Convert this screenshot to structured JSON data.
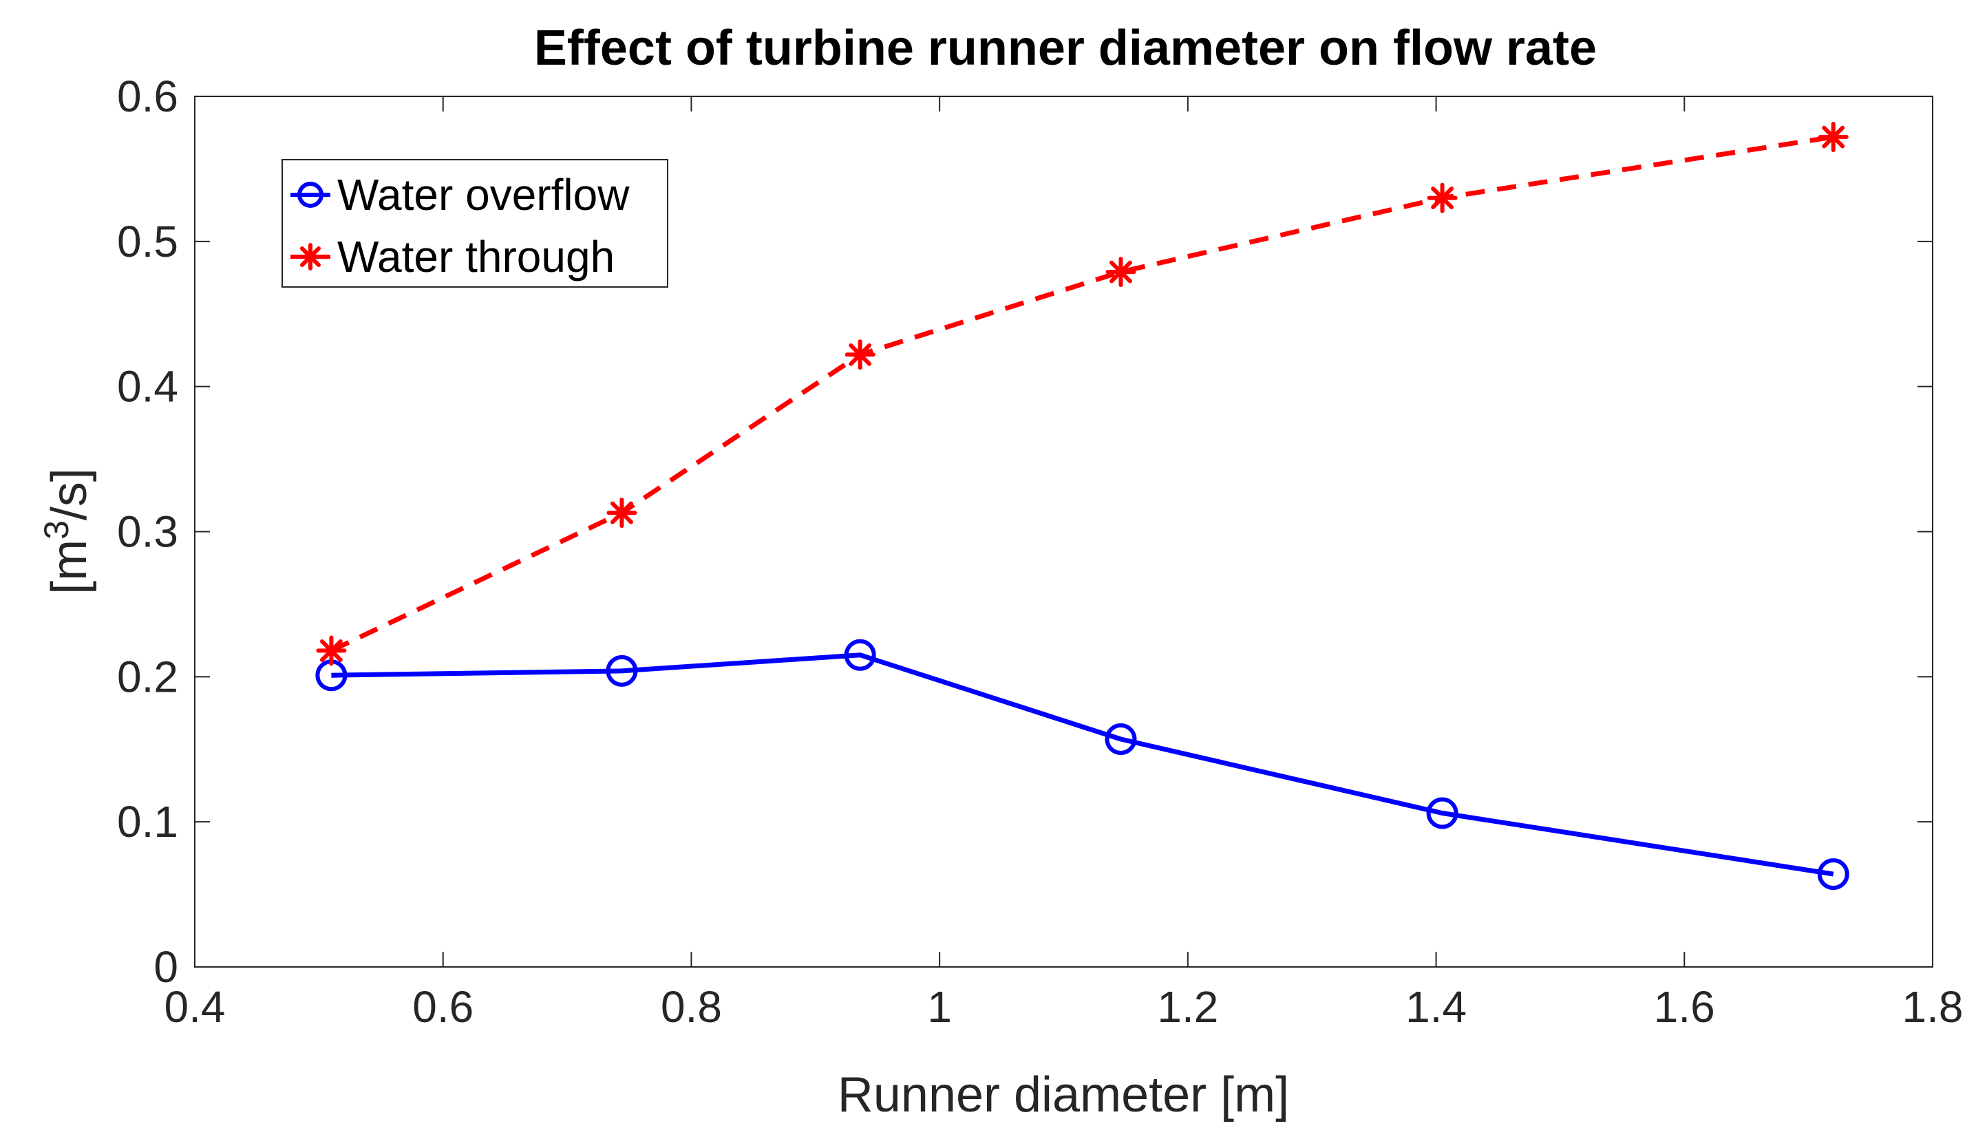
{
  "chart_data": {
    "type": "line",
    "title": "Effect of turbine runner diameter on flow rate",
    "xlabel": "Runner diameter [m]",
    "ylabel": {
      "prefix": "[m",
      "superscript": "3",
      "suffix": "/s]"
    },
    "xlim": [
      0.4,
      1.8
    ],
    "ylim": [
      0,
      0.6
    ],
    "xticks": [
      0.4,
      0.6,
      0.8,
      1,
      1.2,
      1.4,
      1.6,
      1.8
    ],
    "yticks": [
      0,
      0.1,
      0.2,
      0.3,
      0.4,
      0.5,
      0.6
    ],
    "xtick_labels": [
      "0.4",
      "0.6",
      "0.8",
      "1",
      "1.2",
      "1.4",
      "1.6",
      "1.8"
    ],
    "ytick_labels": [
      "0",
      "0.1",
      "0.2",
      "0.3",
      "0.4",
      "0.5",
      "0.6"
    ],
    "grid": false,
    "legend_position": "top-left",
    "series": [
      {
        "name": "Water overflow",
        "color": "#0000ff",
        "line_style": "solid",
        "marker": "circle",
        "x": [
          0.51,
          0.744,
          0.936,
          1.146,
          1.405,
          1.72
        ],
        "y": [
          0.201,
          0.204,
          0.215,
          0.157,
          0.106,
          0.064
        ]
      },
      {
        "name": "Water through",
        "color": "#ff0000",
        "line_style": "dashed",
        "marker": "asterisk",
        "x": [
          0.51,
          0.744,
          0.936,
          1.146,
          1.405,
          1.72
        ],
        "y": [
          0.218,
          0.313,
          0.422,
          0.479,
          0.53,
          0.572
        ]
      }
    ]
  }
}
